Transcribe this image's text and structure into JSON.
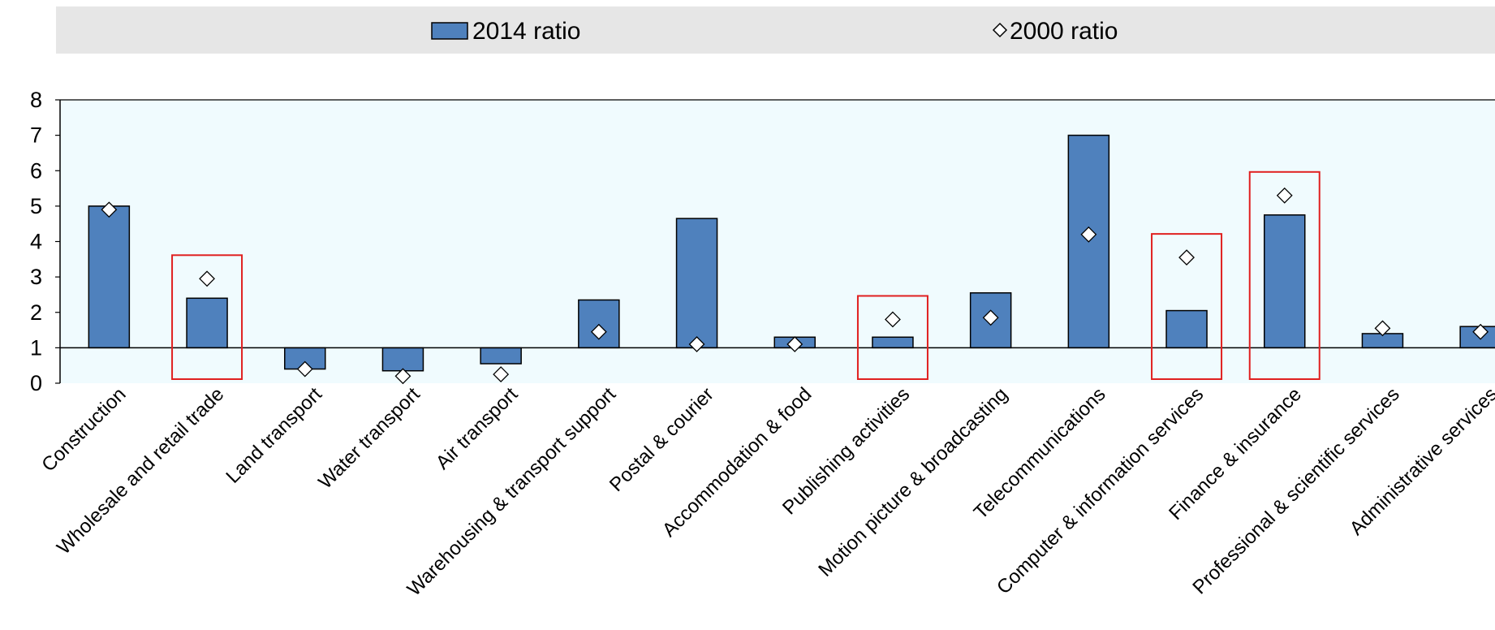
{
  "chart_data": {
    "type": "bar",
    "title": "",
    "xlabel": "",
    "ylabel": "",
    "ylim": [
      0,
      8
    ],
    "yticks": [
      "0",
      "1",
      "2",
      "3",
      "4",
      "5",
      "6",
      "7",
      "8"
    ],
    "baseline": 1,
    "grid": false,
    "legend_position": "top",
    "categories": [
      "Construction",
      "Wholesale and retail trade",
      "Land transport",
      "Water transport",
      "Air transport",
      "Warehousing & transport support",
      "Postal & courier",
      "Accommodation & food",
      "Publishing activities",
      "Motion picture & broadcasting",
      "Telecommunications",
      "Computer & information services",
      "Finance & insurance",
      "Professional & scientific services",
      "Administrative services"
    ],
    "series": [
      {
        "name": "2014 ratio",
        "kind": "bar",
        "color": "#4f81bd",
        "values": [
          5.0,
          2.4,
          0.4,
          0.35,
          0.55,
          2.35,
          4.65,
          1.3,
          1.3,
          2.55,
          7.0,
          2.05,
          4.75,
          1.4,
          1.6
        ]
      },
      {
        "name": "2000 ratio",
        "kind": "marker",
        "marker": "diamond",
        "values": [
          4.9,
          2.95,
          0.4,
          0.2,
          0.25,
          1.45,
          1.1,
          1.1,
          1.8,
          1.85,
          4.2,
          3.55,
          5.3,
          1.55,
          1.45
        ]
      }
    ],
    "highlighted_categories": [
      "Wholesale and retail trade",
      "Publishing activities",
      "Computer & information services",
      "Finance & insurance"
    ],
    "highlight_color": "#e02020",
    "plot_background": "#f0fbfe",
    "legend_background": "#e6e6e6"
  }
}
